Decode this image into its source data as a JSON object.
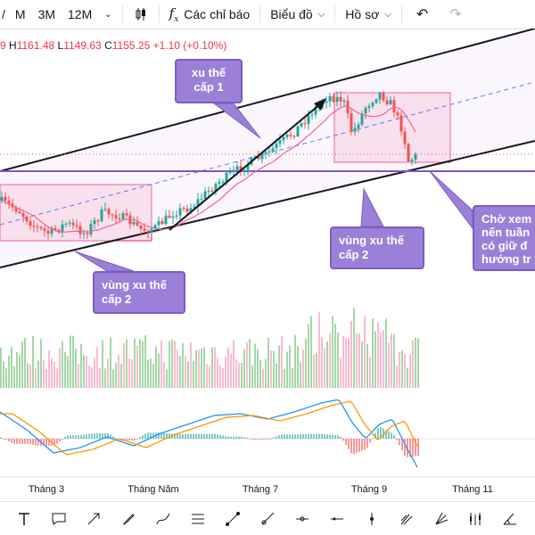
{
  "toolbar": {
    "partial_interval": "/",
    "intervals": [
      "M",
      "3M",
      "12M"
    ],
    "indicators_label": "Các chỉ báo",
    "chart_label": "Biểu đồ",
    "profile_label": "Hồ sơ"
  },
  "ohlc": {
    "open_partial": "9",
    "high_label": "H",
    "high": "1161.48",
    "low_label": "L",
    "low": "1149.63",
    "close_label": "C",
    "close": "1155.25",
    "change": "+1.10 (+0.10%)"
  },
  "annotations": {
    "trend_level1": [
      "xu thế",
      "cấp 1"
    ],
    "trend_zone2_left": [
      "vùng xu thế",
      "cấp 2"
    ],
    "trend_zone2_right": [
      "vùng xu thế",
      "cấp 2"
    ],
    "note": [
      "Chờ xem",
      "nến tuần",
      "có giữ đ",
      "hướng tr"
    ]
  },
  "colors": {
    "up": "#26a69a",
    "down": "#ef5350",
    "ma": "#f06292",
    "zone_fill": "#f8bbd0",
    "zone_border": "#e91e63",
    "support": "#7e57c2",
    "trend_line": "#131722",
    "macd": "#2196f3",
    "signal": "#ff9800",
    "callout": "#9c80d8"
  },
  "chart_data": {
    "type": "candlestick",
    "x_ticks": [
      "Tháng 3",
      "Tháng Năm",
      "Tháng 7",
      "Tháng 9",
      "Tháng 11"
    ],
    "last": {
      "high": 1161.48,
      "low": 1149.63,
      "close": 1155.25,
      "change": 1.1,
      "change_pct": 0.1
    },
    "indicators": [
      "moving average",
      "volume",
      "MACD"
    ]
  },
  "tools": [
    "text-icon",
    "callout-icon",
    "arrow-icon",
    "brush-icon",
    "lines-icon",
    "trend-line-icon",
    "ray-icon",
    "horizontal-ray-icon",
    "horizontal-line-icon",
    "vertical-line-icon",
    "pitchfork-icon",
    "fan-icon",
    "candles-icon",
    "angle-icon"
  ]
}
